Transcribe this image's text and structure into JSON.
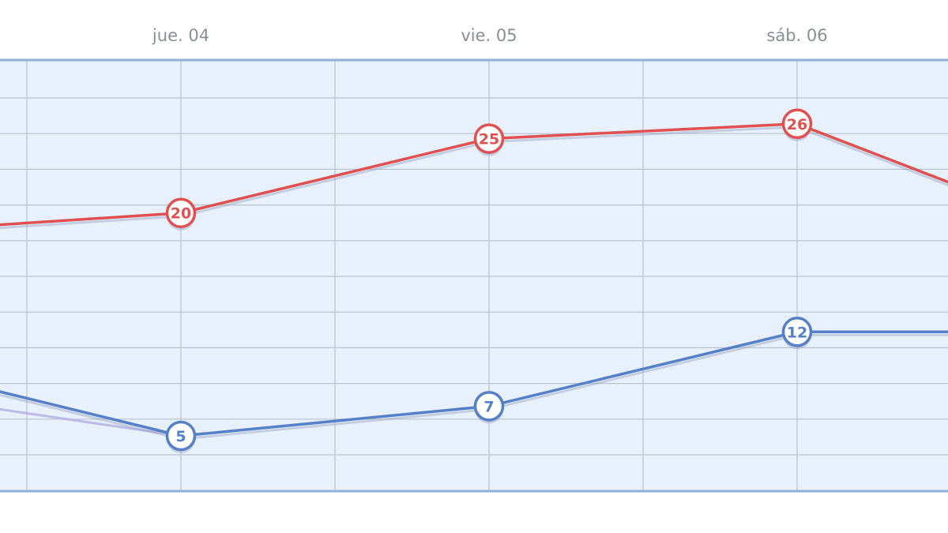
{
  "chart_data": {
    "type": "line",
    "x_tick_labels": [
      "jue. 04",
      "vie. 05",
      "sáb. 06"
    ],
    "series": [
      {
        "color": "#e05050",
        "points": [
          {
            "x": "",
            "y": 19.2,
            "label": ""
          },
          {
            "x": "jue. 04",
            "y": 20,
            "label": "20"
          },
          {
            "x": "vie. 05",
            "y": 25,
            "label": "25"
          },
          {
            "x": "sáb. 06",
            "y": 26,
            "label": "26"
          },
          {
            "x": "",
            "y": 22,
            "label": ""
          }
        ]
      },
      {
        "color": "#5580c8",
        "points": [
          {
            "x": "",
            "y": 8,
            "label": ""
          },
          {
            "x": "jue. 04",
            "y": 5,
            "label": "5"
          },
          {
            "x": "vie. 05",
            "y": 7,
            "label": "7"
          },
          {
            "x": "sáb. 06",
            "y": 12,
            "label": "12"
          },
          {
            "x": "",
            "y": 12,
            "label": ""
          }
        ]
      }
    ],
    "ylim": [
      3,
      27
    ],
    "grid": true,
    "colors": {
      "plot_background": "#e8f0fb",
      "plot_border": "#8fb0d8",
      "grid": "#b8c2d0",
      "marker_fill": "#ffffff",
      "tick_text": "#8a8f96"
    }
  }
}
